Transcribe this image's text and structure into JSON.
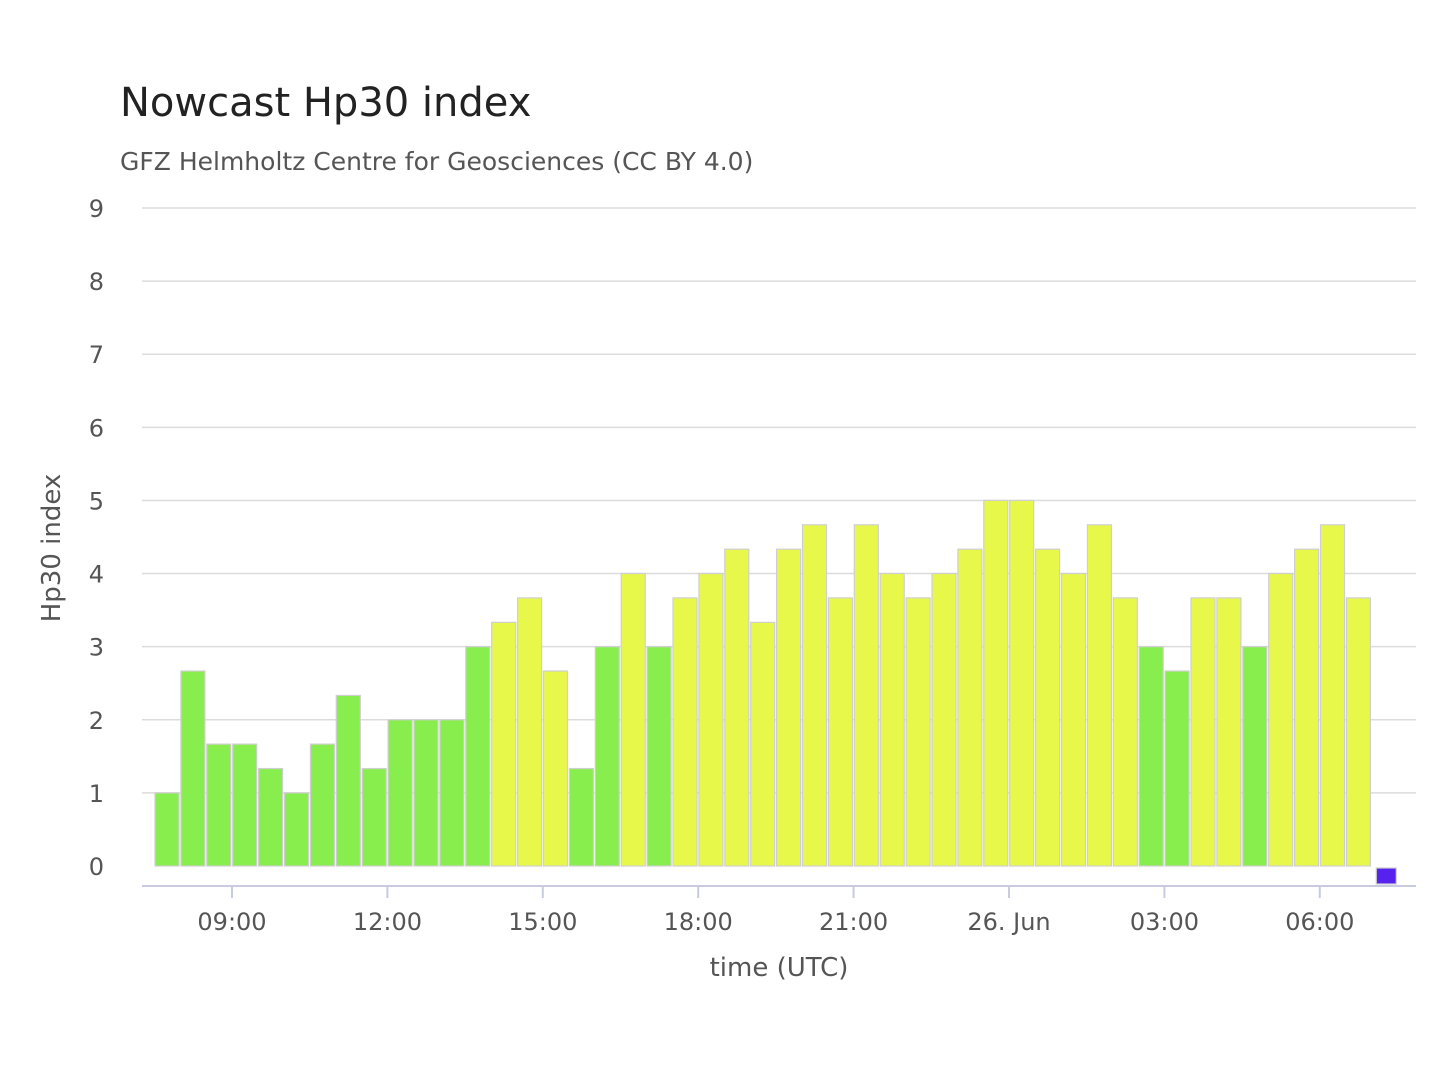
{
  "chart_data": {
    "type": "bar",
    "title": "Nowcast Hp30 index",
    "subtitle": "GFZ Helmholtz Centre for Geosciences (CC BY 4.0)",
    "xlabel": "time (UTC)",
    "ylabel": "Hp30 index",
    "ylim": [
      0,
      9
    ],
    "yticks": [
      "0",
      "1",
      "2",
      "3",
      "4",
      "5",
      "6",
      "7",
      "8",
      "9"
    ],
    "xticks": [
      "09:00",
      "12:00",
      "15:00",
      "18:00",
      "21:00",
      "26. Jun",
      "03:00",
      "06:00"
    ],
    "x_interval": "30 minutes",
    "grid": true,
    "colors": {
      "green": "#88ee4d",
      "yellow": "#e8f84a",
      "purple": "#5522ee"
    },
    "values": [
      1,
      2.667,
      1.667,
      1.667,
      1.333,
      1,
      1.667,
      2.333,
      1.333,
      2,
      2,
      2,
      3,
      3.333,
      3.667,
      2.667,
      1.333,
      3,
      4,
      3,
      3.667,
      4,
      4.333,
      3.333,
      4.333,
      4.667,
      3.667,
      4.667,
      4,
      3.667,
      4,
      4.333,
      5,
      5,
      4.333,
      4,
      4.667,
      3.667,
      3,
      2.667,
      3.667,
      3.667,
      3,
      4,
      4.333,
      4.667,
      3.667,
      0
    ],
    "bar_colors": [
      "green",
      "green",
      "green",
      "green",
      "green",
      "green",
      "green",
      "green",
      "green",
      "green",
      "green",
      "green",
      "green",
      "yellow",
      "yellow",
      "yellow",
      "green",
      "green",
      "yellow",
      "green",
      "yellow",
      "yellow",
      "yellow",
      "yellow",
      "yellow",
      "yellow",
      "yellow",
      "yellow",
      "yellow",
      "yellow",
      "yellow",
      "yellow",
      "yellow",
      "yellow",
      "yellow",
      "yellow",
      "yellow",
      "yellow",
      "green",
      "green",
      "yellow",
      "yellow",
      "green",
      "yellow",
      "yellow",
      "yellow",
      "yellow",
      "purple"
    ]
  }
}
